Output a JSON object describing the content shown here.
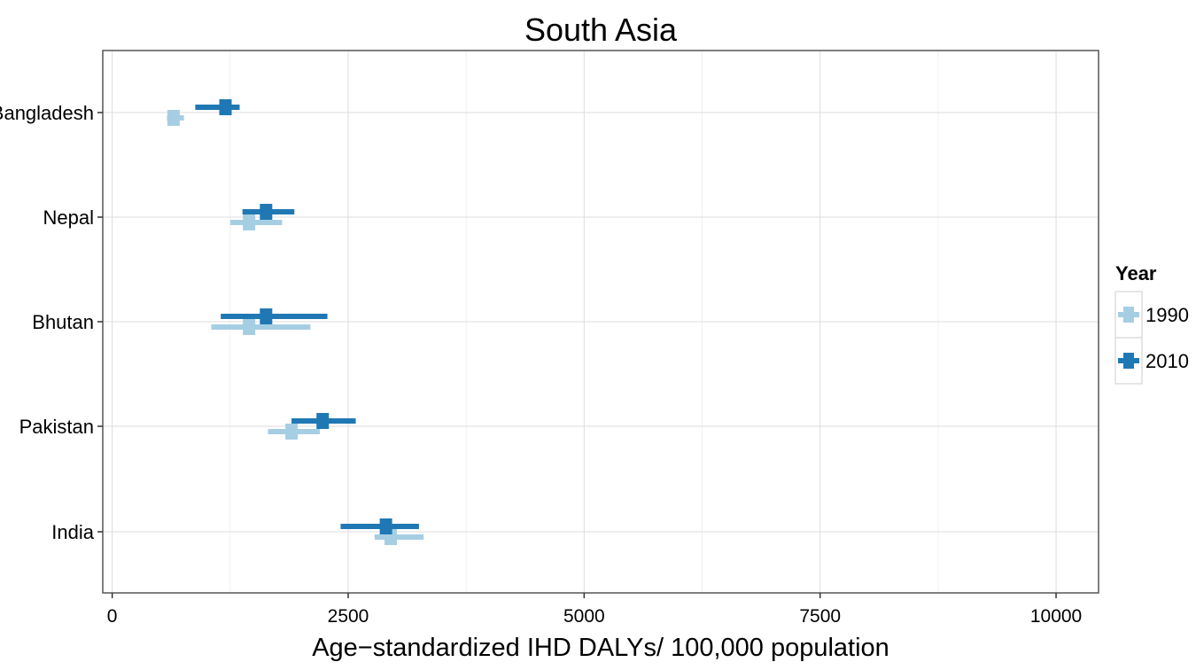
{
  "chart_data": {
    "type": "errorbar",
    "title": "South Asia",
    "xlabel": "Age−standardized IHD DALYs/ 100,000 population",
    "ylabel": "",
    "xlim": [
      -100,
      10450
    ],
    "xticks": [
      0,
      2500,
      5000,
      7500,
      10000
    ],
    "xtick_labels": [
      "0",
      "2500",
      "5000",
      "7500",
      "10000"
    ],
    "grid": true,
    "categories": [
      "Bangladesh",
      "Nepal",
      "Bhutan",
      "Pakistan",
      "India"
    ],
    "legend": {
      "title": "Year",
      "position": "right"
    },
    "series": [
      {
        "name": "1990",
        "color": "#a6cee3",
        "values": [
          {
            "category": "Bangladesh",
            "value": 650,
            "lower": 580,
            "upper": 760
          },
          {
            "category": "Nepal",
            "value": 1450,
            "lower": 1250,
            "upper": 1800
          },
          {
            "category": "Bhutan",
            "value": 1450,
            "lower": 1050,
            "upper": 2100
          },
          {
            "category": "Pakistan",
            "value": 1900,
            "lower": 1650,
            "upper": 2200
          },
          {
            "category": "India",
            "value": 2950,
            "lower": 2780,
            "upper": 3300
          }
        ]
      },
      {
        "name": "2010",
        "color": "#1f78b4",
        "values": [
          {
            "category": "Bangladesh",
            "value": 1200,
            "lower": 880,
            "upper": 1350
          },
          {
            "category": "Nepal",
            "value": 1630,
            "lower": 1380,
            "upper": 1930
          },
          {
            "category": "Bhutan",
            "value": 1630,
            "lower": 1150,
            "upper": 2280
          },
          {
            "category": "Pakistan",
            "value": 2230,
            "lower": 1900,
            "upper": 2580
          },
          {
            "category": "India",
            "value": 2900,
            "lower": 2420,
            "upper": 3250
          }
        ]
      }
    ]
  }
}
